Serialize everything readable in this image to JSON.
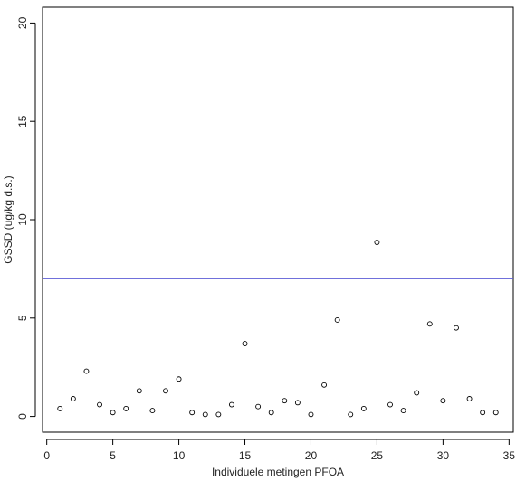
{
  "chart_data": {
    "type": "scatter",
    "x_label": "Individuele metingen PFOA",
    "y_label": "GSSD (ug/kg d.s.)",
    "x": [
      1,
      2,
      3,
      4,
      5,
      6,
      7,
      8,
      9,
      10,
      11,
      12,
      13,
      14,
      15,
      16,
      17,
      18,
      19,
      20,
      21,
      22,
      23,
      24,
      25,
      26,
      27,
      28,
      29,
      30,
      31,
      32,
      33,
      34
    ],
    "values": [
      0.4,
      0.9,
      2.3,
      0.6,
      0.2,
      0.4,
      1.3,
      0.3,
      1.3,
      1.9,
      0.2,
      0.1,
      0.1,
      0.6,
      3.7,
      0.5,
      0.2,
      0.8,
      0.7,
      0.1,
      1.6,
      4.9,
      0.1,
      0.4,
      8.85,
      0.6,
      0.3,
      1.2,
      4.7,
      0.8,
      4.5,
      0.9,
      0.2,
      0.2
    ],
    "color": "#000000",
    "reference_line": {
      "value": 7,
      "color": "#5b5bd6"
    },
    "xlim": [
      -0.32,
      35.32
    ],
    "xticks": [
      0,
      5,
      10,
      15,
      20,
      25,
      30,
      35
    ],
    "ylim": [
      -0.8,
      20.8
    ],
    "yticks": [
      0,
      5,
      10,
      15,
      20
    ]
  }
}
